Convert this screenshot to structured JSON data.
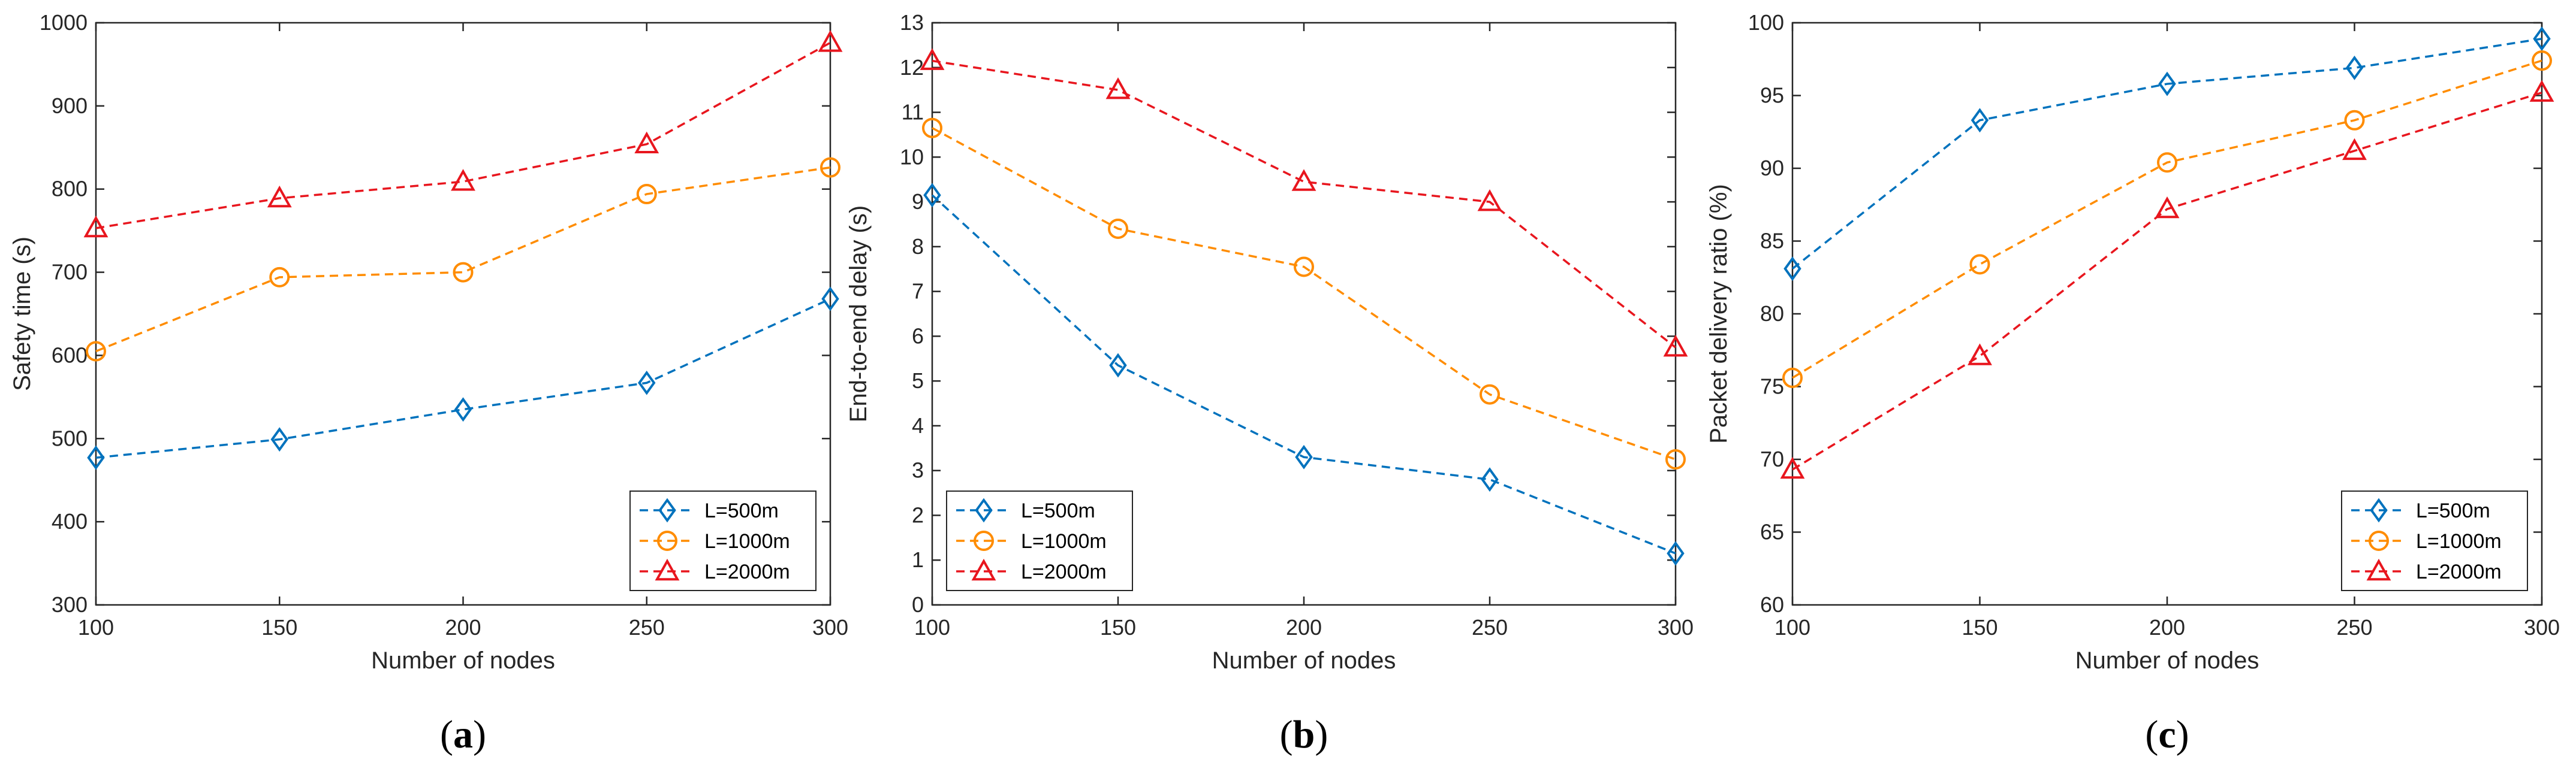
{
  "chart_data": [
    {
      "type": "line",
      "caption": "(a)",
      "caption_prefix": "(",
      "caption_letter": "a",
      "caption_suffix": ")",
      "xlabel": "Number of nodes",
      "ylabel": "Safety time (s)",
      "x": [
        100,
        150,
        200,
        250,
        300
      ],
      "xticks": [
        100,
        150,
        200,
        250,
        300
      ],
      "xlim": [
        100,
        300
      ],
      "ylim": [
        300,
        1000
      ],
      "yticks": [
        300,
        400,
        500,
        600,
        700,
        800,
        900,
        1000
      ],
      "grid": false,
      "legend_location": "bottom-right",
      "series": [
        {
          "name": "L=500m",
          "marker": "diamond",
          "color": "#0072BD",
          "values": [
            477,
            499,
            535,
            567,
            668
          ]
        },
        {
          "name": "L=1000m",
          "marker": "circle",
          "color": "#FF8C00",
          "values": [
            605,
            694,
            700,
            794,
            826
          ]
        },
        {
          "name": "L=2000m",
          "marker": "triangle",
          "color": "#E8161E",
          "values": [
            753,
            789,
            809,
            854,
            976
          ]
        }
      ]
    },
    {
      "type": "line",
      "caption": "(b)",
      "caption_prefix": "(",
      "caption_letter": "b",
      "caption_suffix": ")",
      "xlabel": "Number of nodes",
      "ylabel": "End-to-end delay (s)",
      "x": [
        100,
        150,
        200,
        250,
        300
      ],
      "xticks": [
        100,
        150,
        200,
        250,
        300
      ],
      "xlim": [
        100,
        300
      ],
      "ylim": [
        0,
        13
      ],
      "yticks": [
        0,
        1,
        2,
        3,
        4,
        5,
        6,
        7,
        8,
        9,
        10,
        11,
        12,
        13
      ],
      "grid": false,
      "legend_location": "bottom-left",
      "series": [
        {
          "name": "L=500m",
          "marker": "diamond",
          "color": "#0072BD",
          "values": [
            9.15,
            5.35,
            3.3,
            2.8,
            1.15
          ]
        },
        {
          "name": "L=1000m",
          "marker": "circle",
          "color": "#FF8C00",
          "values": [
            10.65,
            8.4,
            7.55,
            4.7,
            3.25
          ]
        },
        {
          "name": "L=2000m",
          "marker": "triangle",
          "color": "#E8161E",
          "values": [
            12.15,
            11.5,
            9.45,
            9.0,
            5.75
          ]
        }
      ]
    },
    {
      "type": "line",
      "caption": "(c)",
      "caption_prefix": "(",
      "caption_letter": "c",
      "caption_suffix": ")",
      "xlabel": "Number of nodes",
      "ylabel": "Packet delivery ratio (%)",
      "x": [
        100,
        150,
        200,
        250,
        300
      ],
      "xticks": [
        100,
        150,
        200,
        250,
        300
      ],
      "xlim": [
        100,
        300
      ],
      "ylim": [
        60,
        100
      ],
      "yticks": [
        60,
        65,
        70,
        75,
        80,
        85,
        90,
        95,
        100
      ],
      "grid": false,
      "legend_location": "bottom-right",
      "series": [
        {
          "name": "L=500m",
          "marker": "diamond",
          "color": "#0072BD",
          "values": [
            83.1,
            93.3,
            95.8,
            96.9,
            98.9
          ]
        },
        {
          "name": "L=1000m",
          "marker": "circle",
          "color": "#FF8C00",
          "values": [
            75.6,
            83.4,
            90.4,
            93.3,
            97.4
          ]
        },
        {
          "name": "L=2000m",
          "marker": "triangle",
          "color": "#E8161E",
          "values": [
            69.3,
            77.1,
            87.2,
            91.2,
            95.2
          ]
        }
      ]
    }
  ]
}
